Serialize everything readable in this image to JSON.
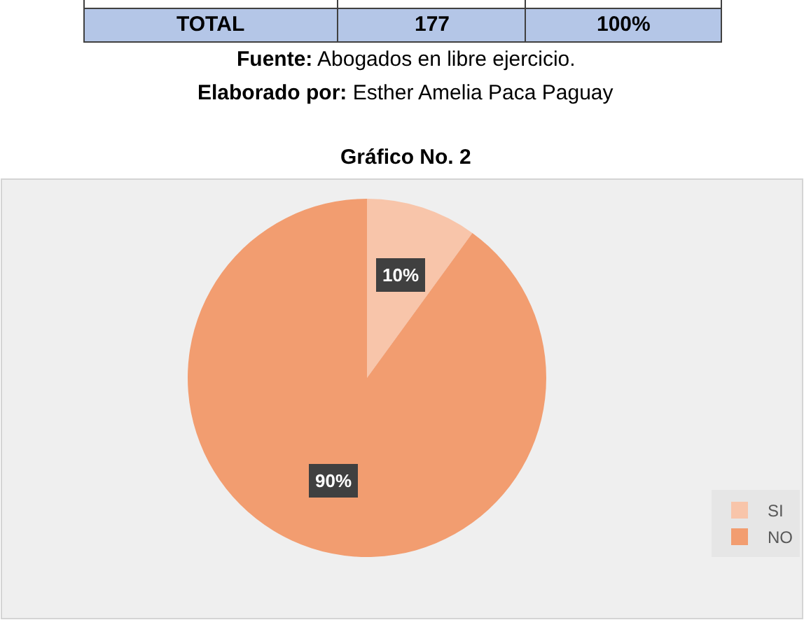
{
  "chart_data": {
    "type": "pie",
    "title": "Gráfico No. 2",
    "categories": [
      "SI",
      "NO"
    ],
    "values": [
      10,
      90
    ],
    "colors": [
      "#f8c5aa",
      "#f29d70"
    ],
    "value_labels": [
      "10%",
      "90%"
    ],
    "legend": "bottom right",
    "annotations": [
      "TOTAL",
      "177",
      "100%",
      "Fuente: Abogados en libre ejercicio.",
      "Elaborado por: Esther Amelia Paca Paguay"
    ]
  }
}
